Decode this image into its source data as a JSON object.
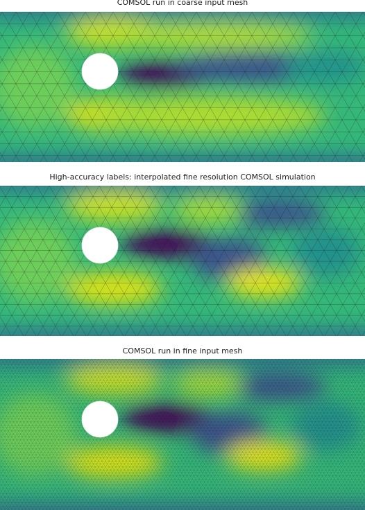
{
  "panels": [
    {
      "title": "COMSOL run in coarse input mesh",
      "mesh": "coarse",
      "wake": "straight"
    },
    {
      "title": "High-accuracy labels: interpolated fine resolution COMSOL simulation",
      "mesh": "medium",
      "wake": "wavy"
    },
    {
      "title": "COMSOL run in fine input mesh",
      "mesh": "fine",
      "wake": "wavy"
    }
  ],
  "colormap": [
    "#440154",
    "#3b528b",
    "#21918c",
    "#5ec962",
    "#fde725"
  ],
  "obstacle_fill": "#ffffff",
  "mesh_line_color": "#1c1c1c"
}
